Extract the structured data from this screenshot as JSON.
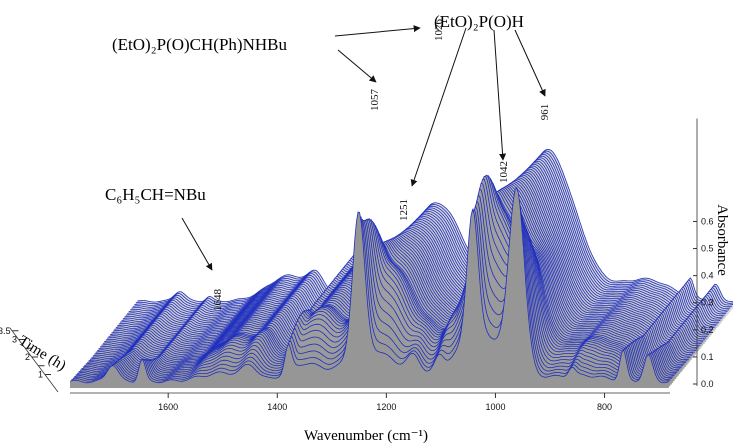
{
  "chart_data": {
    "type": "3d-waterfall",
    "title": "",
    "xlabel": "Wavenumber (cm⁻¹)",
    "ylabel": "Absorbance",
    "zlabel": "Time (h)",
    "x_ticks": [
      1600,
      1400,
      1200,
      1000,
      800
    ],
    "y_ticks": [
      "0.0",
      "0.1",
      "0.2",
      "0.3",
      "0.4",
      "0.5",
      "0.6"
    ],
    "z_ticks": [
      "1",
      "1.5",
      "2",
      "2.5",
      "3",
      "3.5"
    ],
    "xlim": [
      1780,
      680
    ],
    "ylim": [
      0.0,
      0.65
    ],
    "zlim": [
      0,
      4
    ],
    "compounds": [
      {
        "name": "(EtO)₂P(O)CH(Ph)NHBu",
        "peaks": [
          "1026",
          "1057"
        ]
      },
      {
        "name": "(EtO)₂P(O)H",
        "peaks": [
          "1251",
          "1042",
          "961"
        ]
      },
      {
        "name": "C₆H₅CH=NBu",
        "peaks": [
          "1648"
        ]
      }
    ],
    "peak_labels": [
      {
        "text": "1026",
        "x": 1026
      },
      {
        "text": "1057",
        "x": 1057
      },
      {
        "text": "961",
        "x": 961
      },
      {
        "text": "1251",
        "x": 1251
      },
      {
        "text": "1042",
        "x": 1042
      },
      {
        "text": "1648",
        "x": 1648
      }
    ],
    "line_color": "#1f2fbf",
    "surface_color": "#8a8a8a"
  },
  "labels": {
    "compound_a": "(EtO)₂P(O)CH(Ph)NHBu",
    "compound_b": "(EtO)₂P(O)H",
    "compound_c": "C₆H₅CH=NBu",
    "xlabel": "Wavenumber (cm⁻¹)",
    "ylabel": "Absorbance",
    "zlabel": "Time (h)"
  }
}
